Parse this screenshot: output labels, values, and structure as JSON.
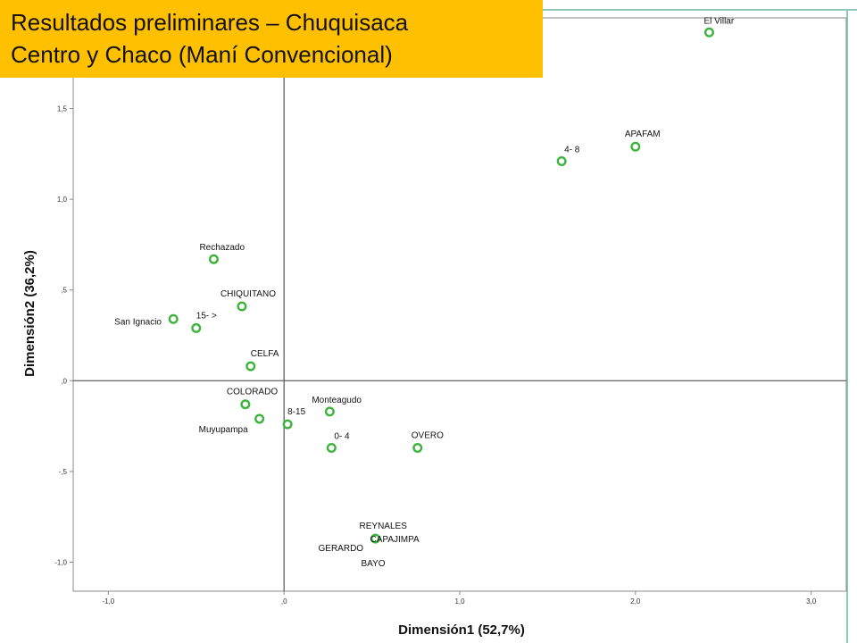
{
  "header": {
    "line1": "Resultados preliminares – Chuquisaca",
    "line2": "Centro y Chaco (Maní Convencional)"
  },
  "colors": {
    "header_bg": "#FFC000",
    "marker": "#3cb43c",
    "frame": "#888888",
    "accent_rule": "#8fc7b8"
  },
  "chart_data": {
    "type": "scatter",
    "title": "",
    "xlabel": "Dimensión1 (52,7%)",
    "ylabel": "Dimensión2 (36,2%)",
    "xlim": [
      -1.2,
      3.2
    ],
    "ylim": [
      -1.16,
      2.0
    ],
    "x_ticks": [
      {
        "value": -1.0,
        "label": "-1,0"
      },
      {
        "value": 0.0,
        "label": ",0"
      },
      {
        "value": 1.0,
        "label": "1,0"
      },
      {
        "value": 2.0,
        "label": "2,0"
      },
      {
        "value": 3.0,
        "label": "3,0"
      }
    ],
    "y_ticks": [
      {
        "value": -1.0,
        "label": "-1,0"
      },
      {
        "value": -0.5,
        "label": "-,5"
      },
      {
        "value": 0.0,
        "label": ",0"
      },
      {
        "value": 0.5,
        "label": ",5"
      },
      {
        "value": 1.0,
        "label": "1,0"
      },
      {
        "value": 1.5,
        "label": "1,5"
      }
    ],
    "reference_lines": {
      "x": 0,
      "y": 0
    },
    "grid": false,
    "marker": "open-circle",
    "points": [
      {
        "x": 2.42,
        "y": 1.92,
        "label": "El Villar"
      },
      {
        "x": 2.0,
        "y": 1.29,
        "label": "APAFAM"
      },
      {
        "x": 1.58,
        "y": 1.21,
        "label": "4- 8"
      },
      {
        "x": -0.4,
        "y": 0.67,
        "label": "Rechazado"
      },
      {
        "x": -0.24,
        "y": 0.41,
        "label": "CHIQUITANO"
      },
      {
        "x": -0.5,
        "y": 0.29,
        "label": "15- >"
      },
      {
        "x": -0.63,
        "y": 0.34,
        "label": "San Ignacio"
      },
      {
        "x": -0.19,
        "y": 0.08,
        "label": "CELFA"
      },
      {
        "x": -0.22,
        "y": -0.13,
        "label": "COLORADO"
      },
      {
        "x": -0.14,
        "y": -0.21,
        "label": "Muyupampa"
      },
      {
        "x": 0.02,
        "y": -0.24,
        "label": "8-15"
      },
      {
        "x": 0.26,
        "y": -0.17,
        "label": "Monteagudo"
      },
      {
        "x": 0.27,
        "y": -0.37,
        "label": "0- 4"
      },
      {
        "x": 0.76,
        "y": -0.37,
        "label": "OVERO"
      },
      {
        "x": 0.52,
        "y": -0.87,
        "label": "REYNALES"
      },
      {
        "x": 0.52,
        "y": -0.87,
        "label": "CAPAJIMPA"
      },
      {
        "x": 0.52,
        "y": -0.87,
        "label": "GERARDO"
      },
      {
        "x": 0.52,
        "y": -0.87,
        "label": "BAYO"
      }
    ]
  }
}
